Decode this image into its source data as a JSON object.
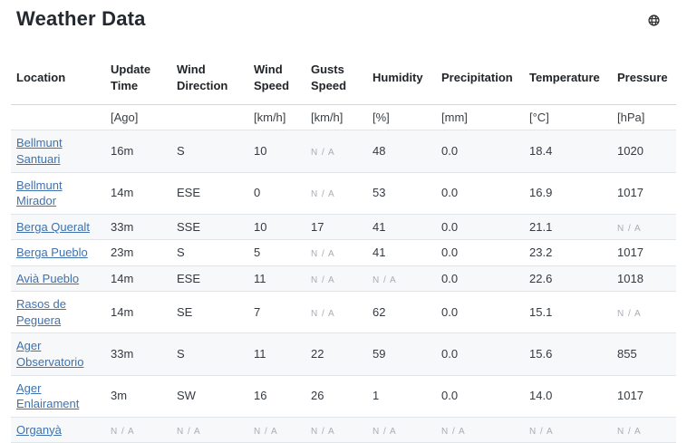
{
  "page": {
    "title": "Weather Data"
  },
  "header": {
    "globe_icon": "globe-icon"
  },
  "table": {
    "na_text": "N / A",
    "columns": [
      {
        "label": "Location",
        "unit": ""
      },
      {
        "label": "Update Time",
        "unit": "[Ago]"
      },
      {
        "label": "Wind Direction",
        "unit": ""
      },
      {
        "label": "Wind Speed",
        "unit": "[km/h]"
      },
      {
        "label": "Gusts Speed",
        "unit": "[km/h]"
      },
      {
        "label": "Humidity",
        "unit": "[%]"
      },
      {
        "label": "Precipitation",
        "unit": "[mm]"
      },
      {
        "label": "Temperature",
        "unit": "[°C]"
      },
      {
        "label": "Pressure",
        "unit": "[hPa]"
      }
    ],
    "rows": [
      {
        "location": "Bellmunt Santuari",
        "values": [
          "16m",
          "S",
          "10",
          null,
          "48",
          "0.0",
          "18.4",
          "1020"
        ]
      },
      {
        "location": "Bellmunt Mirador",
        "values": [
          "14m",
          "ESE",
          "0",
          null,
          "53",
          "0.0",
          "16.9",
          "1017"
        ]
      },
      {
        "location": "Berga Queralt",
        "values": [
          "33m",
          "SSE",
          "10",
          "17",
          "41",
          "0.0",
          "21.1",
          null
        ]
      },
      {
        "location": "Berga Pueblo",
        "values": [
          "23m",
          "S",
          "5",
          null,
          "41",
          "0.0",
          "23.2",
          "1017"
        ]
      },
      {
        "location": "Avià Pueblo",
        "values": [
          "14m",
          "ESE",
          "11",
          null,
          null,
          "0.0",
          "22.6",
          "1018"
        ]
      },
      {
        "location": "Rasos de Peguera",
        "values": [
          "14m",
          "SE",
          "7",
          null,
          "62",
          "0.0",
          "15.1",
          null
        ]
      },
      {
        "location": "Ager Observatorio",
        "values": [
          "33m",
          "S",
          "11",
          "22",
          "59",
          "0.0",
          "15.6",
          "855"
        ]
      },
      {
        "location": "Ager Enlairament",
        "values": [
          "3m",
          "SW",
          "16",
          "26",
          "1",
          "0.0",
          "14.0",
          "1017"
        ]
      },
      {
        "location": "Organyà",
        "values": [
          null,
          null,
          null,
          null,
          null,
          null,
          null,
          null
        ]
      }
    ]
  },
  "colors": {
    "title": "#24292f",
    "link": "#3f72ad",
    "na": "#a9aeb4",
    "stripe": "#f6f8fa",
    "border": "#e1e4e8"
  }
}
